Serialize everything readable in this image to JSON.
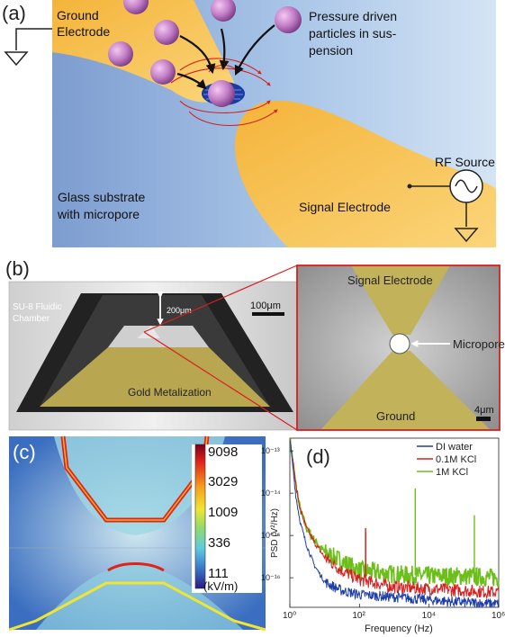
{
  "panel_a": {
    "label": "(a)",
    "ground_electrode": [
      "Ground",
      "Electrode"
    ],
    "particles_note": [
      "Pressure driven",
      "particles in sus-",
      "pension"
    ],
    "rf_source": "RF Source",
    "glass_substrate": [
      "Glass substrate",
      "with micropore"
    ],
    "signal_electrode": "Signal Electrode"
  },
  "panel_b": {
    "label": "(b)",
    "chamber": [
      "SU-8 Fluidic",
      "Chamber"
    ],
    "depth": "200μm",
    "scale_left": "100μm",
    "metal": "Gold Metalization",
    "signal_electrode": "Signal Electrode",
    "micropore": "Micropore",
    "ground": "Ground",
    "scale_right": "4μm"
  },
  "panel_c": {
    "label": "(c)",
    "colorbar_ticks": [
      "9098",
      "3029",
      "1009",
      "336",
      "111"
    ],
    "colorbar_unit": "(kV/m)"
  },
  "chart_data": {
    "type": "line",
    "title": "(d)",
    "xlabel": "Frequency (Hz)",
    "ylabel": "PSD (V²/Hz)",
    "x_scale": "log",
    "y_scale": "log",
    "xlim": [
      1,
      1000000
    ],
    "ylim": [
      2e-17,
      2e-13
    ],
    "x_ticks": [
      "10⁰",
      "10²",
      "10⁴",
      "10⁶"
    ],
    "y_ticks": [
      "10⁻¹³",
      "10⁻¹⁴",
      "10⁻¹⁵",
      "10⁻¹⁶"
    ],
    "legend_position": "top-right",
    "series": [
      {
        "name": "DI water",
        "color": "#1f3fa8",
        "x": [
          1,
          1.5,
          2,
          3,
          5,
          10,
          30,
          100,
          1000,
          10000,
          100000,
          1000000
        ],
        "y": [
          2e-13,
          8e-15,
          2e-15,
          6e-16,
          2e-16,
          8e-17,
          5e-17,
          4e-17,
          3.5e-17,
          3e-17,
          2.6e-17,
          2.4e-17
        ],
        "spikes": []
      },
      {
        "name": "0.1M KCl",
        "color": "#d62020",
        "x": [
          1,
          1.5,
          2,
          3,
          5,
          10,
          30,
          100,
          1000,
          10000,
          100000,
          1000000
        ],
        "y": [
          2e-13,
          1.5e-14,
          4e-15,
          1.5e-15,
          7e-16,
          3e-16,
          1.5e-16,
          9e-17,
          6e-17,
          5.5e-17,
          5e-17,
          4.5e-17
        ],
        "spikes": [
          [
            150,
            1.5e-15
          ]
        ]
      },
      {
        "name": "1M KCl",
        "color": "#6cbf1a",
        "x": [
          1,
          1.5,
          2,
          3,
          5,
          10,
          30,
          100,
          1000,
          10000,
          100000,
          1000000
        ],
        "y": [
          2e-13,
          1.5e-14,
          4e-15,
          1.5e-15,
          8e-16,
          4e-16,
          2.5e-16,
          1.5e-16,
          1.2e-16,
          1.1e-16,
          1.1e-16,
          1e-16
        ],
        "spikes": [
          [
            150,
            1.2e-15
          ],
          [
            4000,
            1.3e-14
          ],
          [
            200000,
            3e-15
          ]
        ]
      }
    ]
  }
}
